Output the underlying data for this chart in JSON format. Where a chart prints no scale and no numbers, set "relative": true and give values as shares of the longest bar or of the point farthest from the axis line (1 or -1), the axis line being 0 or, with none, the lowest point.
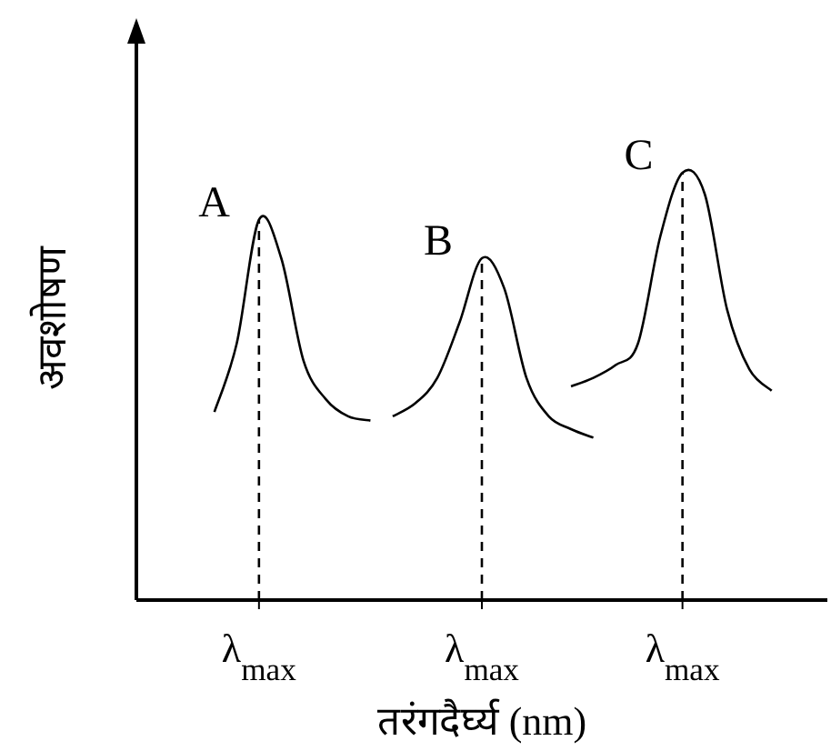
{
  "chart_data": {
    "type": "line",
    "relative": true,
    "xlabel": "तरंगदैर्घ्य (nm)",
    "ylabel": "अवशोषण",
    "categories": [
      null,
      null,
      null,
      null,
      null,
      "λ$_{max}$",
      null,
      null,
      null,
      null,
      null,
      null,
      null,
      null,
      null,
      "λ$_{max}$",
      null,
      null,
      null,
      null,
      null,
      null,
      null,
      null,
      "λ$_{max}$",
      null,
      null,
      null,
      null,
      null,
      null
    ],
    "series": [
      {
        "color": "#000000",
        "values": [
          null,
          null,
          null,
          0.44,
          0.6,
          0.89,
          0.8,
          0.56,
          0.47,
          0.43,
          0.42,
          null,
          null,
          null,
          null,
          null,
          null,
          null,
          null,
          null,
          null,
          null,
          null,
          null,
          null,
          null,
          null,
          null,
          null,
          null,
          null
        ]
      },
      {
        "color": "#000000",
        "values": [
          null,
          null,
          null,
          null,
          null,
          null,
          null,
          null,
          null,
          null,
          null,
          0.43,
          0.46,
          0.52,
          0.65,
          0.8,
          0.73,
          0.52,
          0.43,
          0.4,
          0.38,
          null,
          null,
          null,
          null,
          null,
          null,
          null,
          null,
          null,
          null
        ]
      },
      {
        "color": "#000000",
        "values": [
          null,
          null,
          null,
          null,
          null,
          null,
          null,
          null,
          null,
          null,
          null,
          null,
          null,
          null,
          null,
          null,
          null,
          null,
          null,
          0.5,
          0.52,
          0.55,
          0.6,
          0.85,
          1.0,
          0.95,
          0.68,
          0.54,
          0.49,
          null,
          null
        ]
      }
    ],
    "annotations": [
      "A",
      "B",
      "C"
    ],
    "grid": "x"
  }
}
